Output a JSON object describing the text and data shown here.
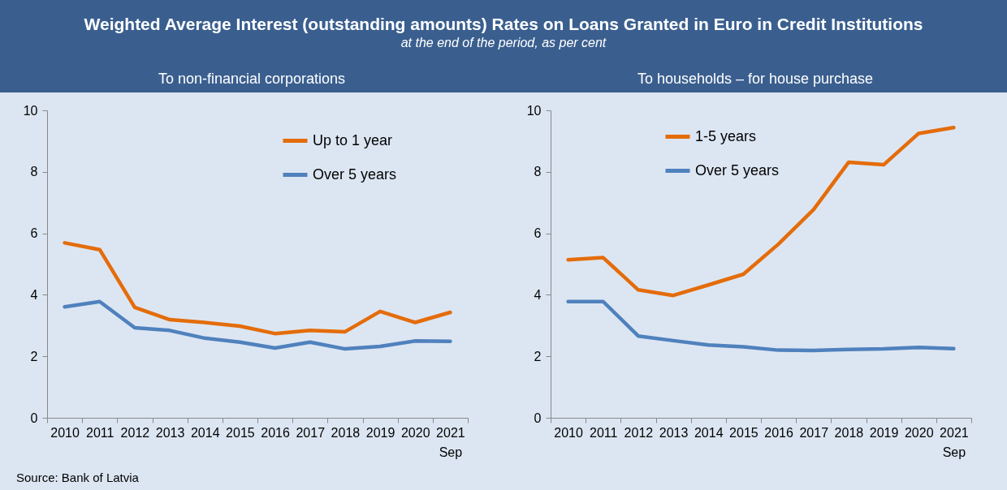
{
  "chart_data": [
    {
      "type": "line",
      "title": "To non-financial corporations",
      "annotations": [
        "Weighted Average Interest (outstanding amounts) Rates on Loans Granted in Euro in Credit Institutions",
        "at the end of the period, as per cent",
        "Source: Bank of Latvia"
      ],
      "categories": [
        "2010",
        "2011",
        "2012",
        "2013",
        "2014",
        "2015",
        "2016",
        "2017",
        "2018",
        "2019",
        "2020",
        "2021 Sep"
      ],
      "series": [
        {
          "name": "Up to 1 year",
          "color": "#e46c0a",
          "values": [
            5.69,
            5.47,
            3.59,
            3.19,
            3.1,
            2.98,
            2.74,
            2.84,
            2.8,
            3.46,
            3.1,
            3.43
          ]
        },
        {
          "name": "Over 5 years",
          "color": "#4f81bd",
          "values": [
            3.61,
            3.78,
            2.93,
            2.84,
            2.59,
            2.46,
            2.27,
            2.46,
            2.24,
            2.32,
            2.5,
            2.49
          ]
        }
      ],
      "ylim": [
        0,
        10
      ],
      "yticks": [
        0,
        2,
        4,
        6,
        8,
        10
      ],
      "legend": "top right",
      "line_style": "solid",
      "marker": "none"
    },
    {
      "type": "line",
      "title": "To households – for house purchase",
      "categories": [
        "2010",
        "2011",
        "2012",
        "2013",
        "2014",
        "2015",
        "2016",
        "2017",
        "2018",
        "2019",
        "2020",
        "2021 Sep"
      ],
      "series": [
        {
          "name": "1-5 years",
          "color": "#e46c0a",
          "values": [
            5.14,
            5.21,
            4.16,
            3.98,
            4.32,
            4.67,
            5.65,
            6.77,
            8.31,
            8.23,
            9.25,
            9.44
          ]
        },
        {
          "name": "Over 5 years",
          "color": "#4f81bd",
          "values": [
            3.78,
            3.78,
            2.66,
            2.51,
            2.37,
            2.31,
            2.2,
            2.19,
            2.22,
            2.24,
            2.29,
            2.25
          ]
        }
      ],
      "ylim": [
        0,
        10
      ],
      "yticks": [
        0,
        2,
        4,
        6,
        8,
        10
      ],
      "legend": "top",
      "line_style": "solid",
      "marker": "none"
    }
  ]
}
